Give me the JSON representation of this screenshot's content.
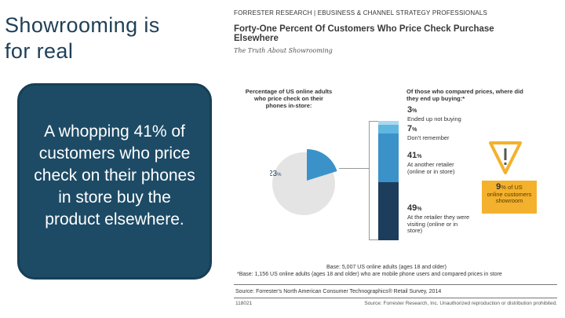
{
  "slide": {
    "title": "Showrooming is\nfor real",
    "callout": "A whopping 41% of customers who price check on their phones in store buy the product elsewhere."
  },
  "infographic": {
    "header": "FORRESTER RESEARCH  |  EBUSINESS & CHANNEL STRATEGY PROFESSIONALS",
    "title": "Forty-One Percent Of Customers Who Price Check Purchase Elsewhere",
    "subtitle": "The Truth About Showrooming",
    "left_question": "Percentage of US online adults who price check on their phones in-store:",
    "pie_value": "23",
    "pie_pct_sign": "%",
    "right_question": "Of those who compared prices, where did they end up buying:*",
    "stats": [
      {
        "value": "3",
        "sign": "%",
        "label": "Ended up not buying",
        "color": "#a9d8ef"
      },
      {
        "value": "7",
        "sign": "%",
        "label": "Don't remember",
        "color": "#5fb6df"
      },
      {
        "value": "41",
        "sign": "%",
        "label": "At another retailer (online or in store)",
        "color": "#3a92c9"
      },
      {
        "value": "49",
        "sign": "%",
        "label": "At the retailer they were visiting (online or in store)",
        "color": "#1c3e5c"
      }
    ],
    "warning_value": "9",
    "warning_sign": "% of US",
    "warning_text": "online customers showroom",
    "base_note": "Base: 5,007 US online adults (ages 18 and older)",
    "base_note2": "*Base: 1,156 US online adults (ages 18 and older) who are mobile phone users and compared prices in store",
    "source": "Source: Forrester's North American Consumer Technographics® Retail Survey, 2014",
    "footer_id": "118021",
    "footer_copy": "Source: Forrester Research, Inc. Unauthorized reproduction or distribution prohibited."
  },
  "colors": {
    "title": "#1f3f57",
    "callout_bg": "#1d4b66",
    "warning": "#f3b12d",
    "pie_gray": "#e4e4e4",
    "pie_blue": "#3a92c9"
  }
}
